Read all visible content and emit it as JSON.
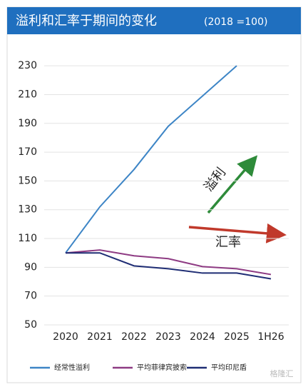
{
  "chart_data": {
    "type": "line",
    "title": "溢利和汇率于期间的变化",
    "subtitle": "(2018 =100)",
    "categories": [
      "2020",
      "2021",
      "2022",
      "2023",
      "2024",
      "2025",
      "1H26"
    ],
    "series": [
      {
        "name": "经常性溢利",
        "color": "#3d85c6",
        "values": [
          100,
          132,
          158,
          188,
          209,
          230,
          null
        ]
      },
      {
        "name": "平均菲律宾披索",
        "color": "#8e3b83",
        "values": [
          100,
          102,
          98,
          96,
          90.5,
          89,
          85
        ]
      },
      {
        "name": "平均印尼盾",
        "color": "#1f2d74",
        "values": [
          100,
          100,
          91,
          89,
          86,
          86,
          82
        ]
      }
    ],
    "ylim": [
      50,
      240
    ],
    "yticks": [
      50,
      70,
      90,
      110,
      130,
      150,
      170,
      190,
      210,
      230
    ],
    "grid": true,
    "annotations": [
      "溢利",
      "汇率"
    ],
    "watermark": "格隆汇"
  }
}
